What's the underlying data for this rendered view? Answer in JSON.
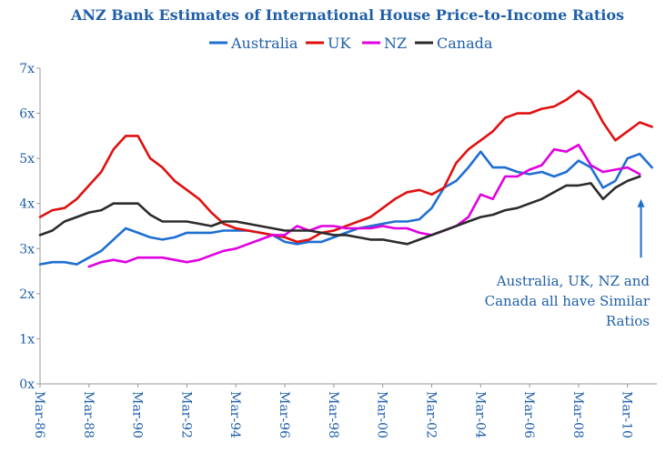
{
  "chart_data": {
    "type": "line",
    "title": "ANZ Bank Estimates of International House Price-to-Income Ratios",
    "xlabel": "",
    "ylabel": "",
    "xlim": [
      1986.0,
      2011.2
    ],
    "ylim": [
      0,
      7
    ],
    "yticks": [
      0,
      1,
      2,
      3,
      4,
      5,
      6,
      7
    ],
    "ytick_labels": [
      "0x",
      "1x",
      "2x",
      "3x",
      "4x",
      "5x",
      "6x",
      "7x"
    ],
    "xticks": [
      1986,
      1988,
      1990,
      1992,
      1994,
      1996,
      1998,
      2000,
      2002,
      2004,
      2006,
      2008,
      2010
    ],
    "xtick_labels": [
      "Mar-86",
      "Mar-88",
      "Mar-90",
      "Mar-92",
      "Mar-94",
      "Mar-96",
      "Mar-98",
      "Mar-00",
      "Mar-02",
      "Mar-04",
      "Mar-06",
      "Mar-08",
      "Mar-10"
    ],
    "grid": false,
    "legend_position": "top",
    "annotation": {
      "lines": [
        "Australia, UK, NZ and",
        "Canada all have Similar",
        "Ratios"
      ],
      "arrow_x": 2010.55,
      "arrow_from_y": 2.8,
      "arrow_to_y": 4.1
    },
    "series": [
      {
        "name": "Australia",
        "color": "#1f6fd1",
        "x": [
          1986.0,
          1986.5,
          1987.0,
          1987.5,
          1988.0,
          1988.5,
          1989.0,
          1989.5,
          1990.0,
          1990.5,
          1991.0,
          1991.5,
          1992.0,
          1992.5,
          1993.0,
          1993.5,
          1994.0,
          1994.5,
          1995.0,
          1995.5,
          1996.0,
          1996.5,
          1997.0,
          1997.5,
          1998.0,
          1998.5,
          1999.0,
          1999.5,
          2000.0,
          2000.5,
          2001.0,
          2001.5,
          2002.0,
          2002.5,
          2003.0,
          2003.5,
          2004.0,
          2004.5,
          2005.0,
          2005.5,
          2006.0,
          2006.5,
          2007.0,
          2007.5,
          2008.0,
          2008.5,
          2009.0,
          2009.5,
          2010.0,
          2010.5,
          2011.0
        ],
        "y": [
          2.65,
          2.7,
          2.7,
          2.65,
          2.8,
          2.95,
          3.2,
          3.45,
          3.35,
          3.25,
          3.2,
          3.25,
          3.35,
          3.35,
          3.35,
          3.4,
          3.4,
          3.4,
          3.35,
          3.3,
          3.15,
          3.1,
          3.15,
          3.15,
          3.25,
          3.35,
          3.45,
          3.5,
          3.55,
          3.6,
          3.6,
          3.65,
          3.9,
          4.35,
          4.5,
          4.8,
          5.15,
          4.8,
          4.8,
          4.7,
          4.65,
          4.7,
          4.6,
          4.7,
          4.95,
          4.8,
          4.35,
          4.5,
          5.0,
          5.1,
          4.8
        ]
      },
      {
        "name": "UK",
        "color": "#e01010",
        "x": [
          1986.0,
          1986.5,
          1987.0,
          1987.5,
          1988.0,
          1988.5,
          1989.0,
          1989.5,
          1990.0,
          1990.5,
          1991.0,
          1991.5,
          1992.0,
          1992.5,
          1993.0,
          1993.5,
          1994.0,
          1994.5,
          1995.0,
          1995.5,
          1996.0,
          1996.5,
          1997.0,
          1997.5,
          1998.0,
          1998.5,
          1999.0,
          1999.5,
          2000.0,
          2000.5,
          2001.0,
          2001.5,
          2002.0,
          2002.5,
          2003.0,
          2003.5,
          2004.0,
          2004.5,
          2005.0,
          2005.5,
          2006.0,
          2006.5,
          2007.0,
          2007.5,
          2008.0,
          2008.5,
          2009.0,
          2009.5,
          2010.0,
          2010.5,
          2011.0
        ],
        "y": [
          3.7,
          3.85,
          3.9,
          4.1,
          4.4,
          4.7,
          5.2,
          5.5,
          5.5,
          5.0,
          4.8,
          4.5,
          4.3,
          4.1,
          3.8,
          3.55,
          3.45,
          3.4,
          3.35,
          3.3,
          3.25,
          3.15,
          3.2,
          3.35,
          3.4,
          3.5,
          3.6,
          3.7,
          3.9,
          4.1,
          4.25,
          4.3,
          4.2,
          4.35,
          4.9,
          5.2,
          5.4,
          5.6,
          5.9,
          6.0,
          6.0,
          6.1,
          6.15,
          6.3,
          6.5,
          6.3,
          5.8,
          5.4,
          5.6,
          5.8,
          5.7
        ]
      },
      {
        "name": "NZ",
        "color": "#e000e0",
        "x": [
          1988.0,
          1988.5,
          1989.0,
          1989.5,
          1990.0,
          1990.5,
          1991.0,
          1991.5,
          1992.0,
          1992.5,
          1993.0,
          1993.5,
          1994.0,
          1994.5,
          1995.0,
          1995.5,
          1996.0,
          1996.5,
          1997.0,
          1997.5,
          1998.0,
          1998.5,
          1999.0,
          1999.5,
          2000.0,
          2000.5,
          2001.0,
          2001.5,
          2002.0,
          2002.5,
          2003.0,
          2003.5,
          2004.0,
          2004.5,
          2005.0,
          2005.5,
          2006.0,
          2006.5,
          2007.0,
          2007.5,
          2008.0,
          2008.5,
          2009.0,
          2009.5,
          2010.0,
          2010.5
        ],
        "y": [
          2.6,
          2.7,
          2.75,
          2.7,
          2.8,
          2.8,
          2.8,
          2.75,
          2.7,
          2.75,
          2.85,
          2.95,
          3.0,
          3.1,
          3.2,
          3.3,
          3.3,
          3.5,
          3.4,
          3.5,
          3.5,
          3.45,
          3.45,
          3.45,
          3.5,
          3.45,
          3.45,
          3.35,
          3.3,
          3.4,
          3.5,
          3.7,
          4.2,
          4.1,
          4.6,
          4.6,
          4.75,
          4.85,
          5.2,
          5.15,
          5.3,
          4.85,
          4.7,
          4.75,
          4.8,
          4.65
        ]
      },
      {
        "name": "Canada",
        "color": "#2b2b2b",
        "x": [
          1986.0,
          1986.5,
          1987.0,
          1987.5,
          1988.0,
          1988.5,
          1989.0,
          1989.5,
          1990.0,
          1990.5,
          1991.0,
          1991.5,
          1992.0,
          1992.5,
          1993.0,
          1993.5,
          1994.0,
          1994.5,
          1995.0,
          1995.5,
          1996.0,
          1996.5,
          1997.0,
          1997.5,
          1998.0,
          1998.5,
          1999.0,
          1999.5,
          2000.0,
          2000.5,
          2001.0,
          2001.5,
          2002.0,
          2002.5,
          2003.0,
          2003.5,
          2004.0,
          2004.5,
          2005.0,
          2005.5,
          2006.0,
          2006.5,
          2007.0,
          2007.5,
          2008.0,
          2008.5,
          2009.0,
          2009.5,
          2010.0,
          2010.5
        ],
        "y": [
          3.3,
          3.4,
          3.6,
          3.7,
          3.8,
          3.85,
          4.0,
          4.0,
          4.0,
          3.75,
          3.6,
          3.6,
          3.6,
          3.55,
          3.5,
          3.6,
          3.6,
          3.55,
          3.5,
          3.45,
          3.4,
          3.4,
          3.4,
          3.35,
          3.3,
          3.3,
          3.25,
          3.2,
          3.2,
          3.15,
          3.1,
          3.2,
          3.3,
          3.4,
          3.5,
          3.6,
          3.7,
          3.75,
          3.85,
          3.9,
          4.0,
          4.1,
          4.25,
          4.4,
          4.4,
          4.45,
          4.1,
          4.35,
          4.5,
          4.6
        ]
      }
    ]
  }
}
